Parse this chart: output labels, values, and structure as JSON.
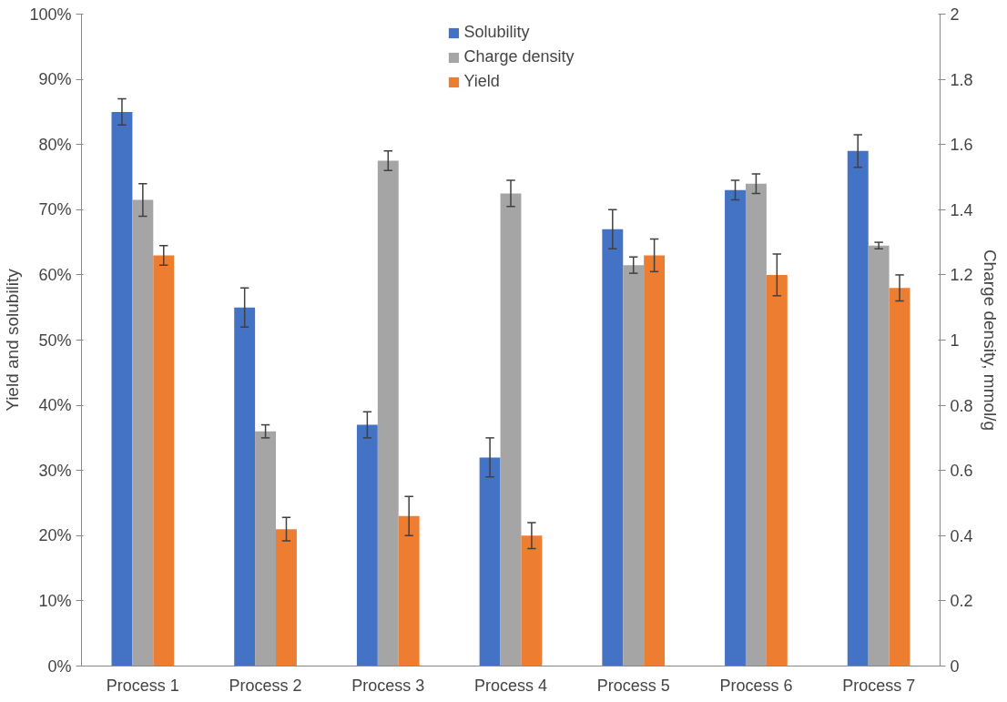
{
  "chart_data": {
    "type": "bar",
    "ylabel": "Yield and solubility",
    "y2label": "Charge density, mmol/g",
    "categories": [
      "Process 1",
      "Process 2",
      "Process 3",
      "Process 4",
      "Process 5",
      "Process 6",
      "Process 7"
    ],
    "series": [
      {
        "name": "Solubility",
        "color": "#4472c4",
        "values": [
          85,
          55,
          37,
          32,
          67,
          73,
          79
        ],
        "errors": [
          2,
          3,
          2,
          3,
          3,
          1.5,
          2.5
        ]
      },
      {
        "name": "Charge density",
        "color": "#a5a5a5",
        "axis": "y2",
        "values": [
          1.43,
          0.72,
          1.55,
          1.45,
          1.23,
          1.48,
          1.29
        ],
        "errors": [
          0.05,
          0.02,
          0.03,
          0.04,
          0.025,
          0.03,
          0.01
        ]
      },
      {
        "name": "Yield",
        "color": "#ed7d31",
        "values": [
          63,
          21,
          23,
          20,
          63,
          60,
          58
        ],
        "errors": [
          1.5,
          1.8,
          3,
          2,
          2.5,
          3.2,
          2
        ]
      }
    ],
    "ylim": [
      0,
      100
    ],
    "yticks": [
      {
        "value": 0,
        "label": "0%"
      },
      {
        "value": 10,
        "label": "10%"
      },
      {
        "value": 20,
        "label": "20%"
      },
      {
        "value": 30,
        "label": "30%"
      },
      {
        "value": 40,
        "label": "40%"
      },
      {
        "value": 50,
        "label": "50%"
      },
      {
        "value": 60,
        "label": "60%"
      },
      {
        "value": 70,
        "label": "70%"
      },
      {
        "value": 80,
        "label": "80%"
      },
      {
        "value": 90,
        "label": "90%"
      },
      {
        "value": 100,
        "label": "100%"
      }
    ],
    "y2lim": [
      0,
      2
    ],
    "y2ticks": [
      0,
      0.2,
      0.4,
      0.6,
      0.8,
      1,
      1.2,
      1.4,
      1.6,
      1.8,
      2
    ],
    "legend": "top",
    "grid": false
  }
}
